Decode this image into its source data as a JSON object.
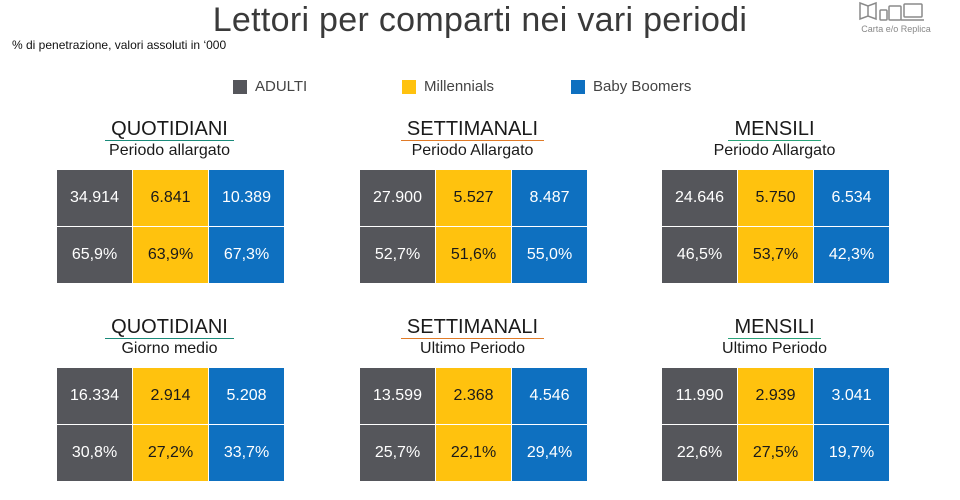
{
  "title": "Lettori per comparti nei vari periodi",
  "subtitle": "% di penetrazione,  valori  assoluti in ‘000",
  "corner_label": "Carta e/o Replica",
  "legend": [
    {
      "label": "ADULTI",
      "color": "#55565b"
    },
    {
      "label": "Millennials",
      "color": "#ffc20e"
    },
    {
      "label": "Baby Boomers",
      "color": "#0e70c0"
    }
  ],
  "chart_data": {
    "type": "table",
    "series_names": [
      "ADULTI",
      "Millennials",
      "Baby Boomers"
    ],
    "panels": [
      {
        "title": "QUOTIDIANI",
        "subtitle": "Periodo allargato",
        "underline": "#1a8a7a",
        "values": [
          "34.914",
          "6.841",
          "10.389"
        ],
        "percents": [
          "65,9%",
          "63,9%",
          "67,3%"
        ]
      },
      {
        "title": "SETTIMANALI",
        "subtitle": "Periodo Allargato",
        "underline": "#e07b28",
        "values": [
          "27.900",
          "5.527",
          "8.487"
        ],
        "percents": [
          "52,7%",
          "51,6%",
          "55,0%"
        ]
      },
      {
        "title": "MENSILI",
        "subtitle": "Periodo Allargato",
        "underline": "#2aa37a",
        "values": [
          "24.646",
          "5.750",
          "6.534"
        ],
        "percents": [
          "46,5%",
          "53,7%",
          "42,3%"
        ]
      },
      {
        "title": "QUOTIDIANI",
        "subtitle": "Giorno medio",
        "underline": "#1a8a7a",
        "values": [
          "16.334",
          "2.914",
          "5.208"
        ],
        "percents": [
          "30,8%",
          "27,2%",
          "33,7%"
        ]
      },
      {
        "title": "SETTIMANALI",
        "subtitle": "Ultimo Periodo",
        "underline": "#e07b28",
        "values": [
          "13.599",
          "2.368",
          "4.546"
        ],
        "percents": [
          "25,7%",
          "22,1%",
          "29,4%"
        ]
      },
      {
        "title": "MENSILI",
        "subtitle": "Ultimo Periodo",
        "underline": "#2aa37a",
        "values": [
          "11.990",
          "2.939",
          "3.041"
        ],
        "percents": [
          "22,6%",
          "27,5%",
          "19,7%"
        ]
      }
    ]
  }
}
